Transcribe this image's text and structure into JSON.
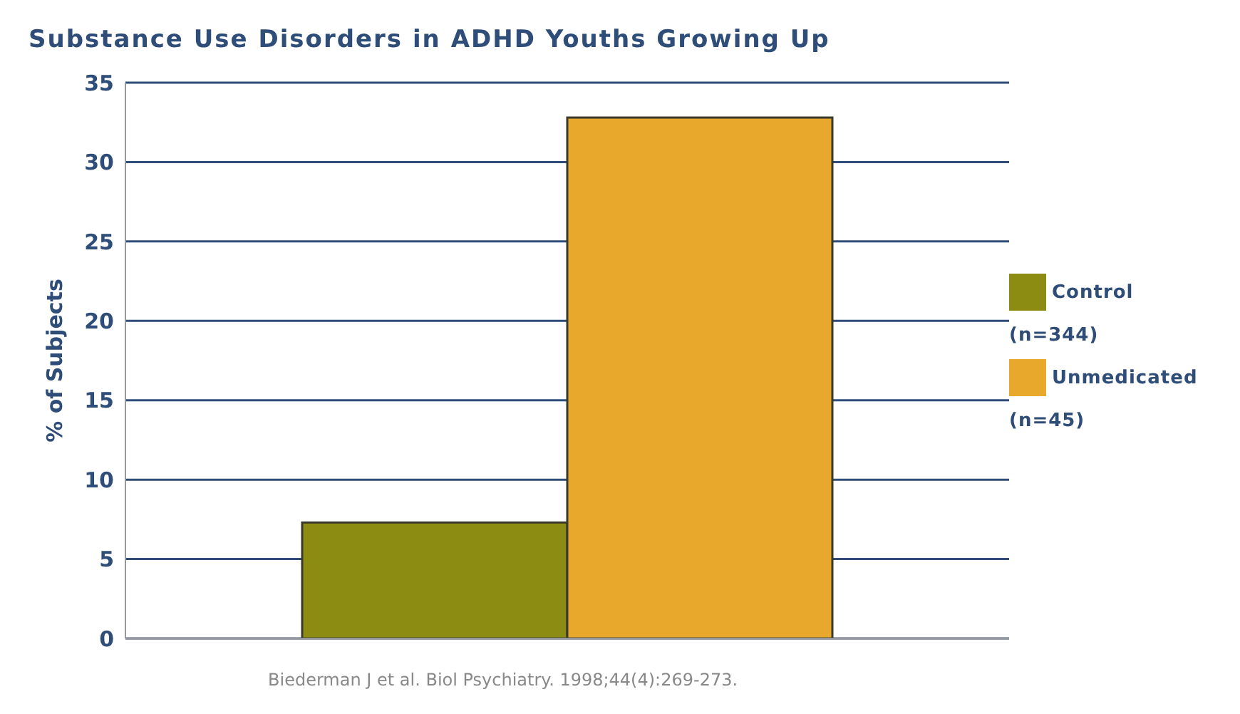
{
  "chart_data": {
    "type": "bar",
    "title": "Substance Use Disorders in ADHD Youths Growing Up",
    "ylabel": "% of Subjects",
    "categories": [
      null
    ],
    "series": [
      {
        "name": "Control (n=344)",
        "color": "#8c8c12",
        "values": [
          7.3
        ]
      },
      {
        "name": "Unmedicated (n=45)",
        "color": "#e8a82c",
        "values": [
          32.8
        ]
      }
    ],
    "ylim": [
      0,
      35
    ],
    "yticks": [
      0,
      5,
      10,
      15,
      20,
      25,
      30,
      35
    ],
    "grid": "y",
    "legend": "right",
    "annotations": [
      "Biederman J et al. Biol Psychiatry. 1998;44(4):269-273."
    ]
  }
}
